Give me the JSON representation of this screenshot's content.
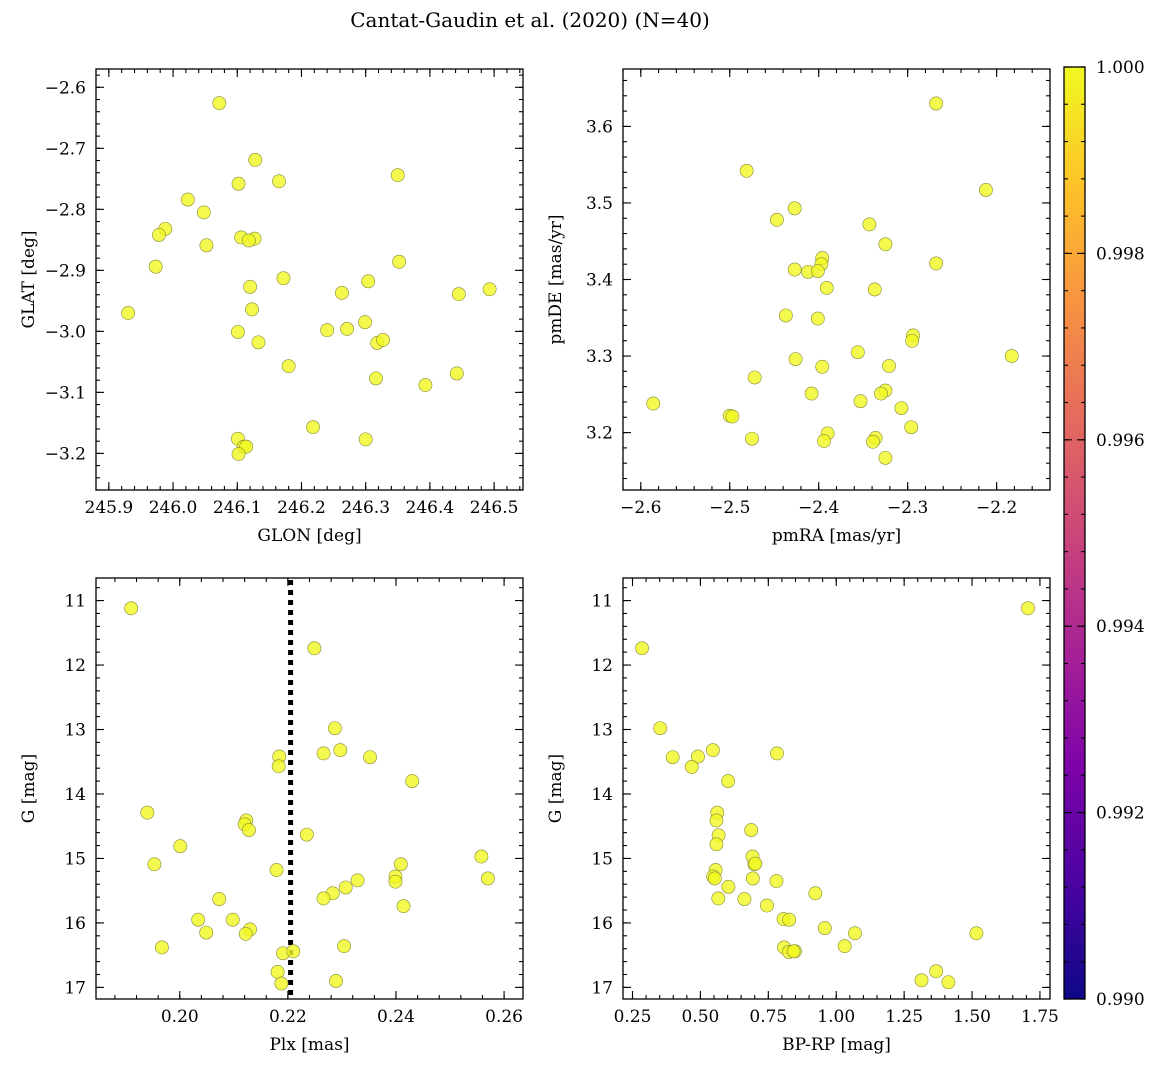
{
  "title": "Cantat-Gaudin et al. (2020) (N=40)",
  "colorbar": {
    "min": 0.99,
    "max": 1.0,
    "ticks": [
      "0.990",
      "0.992",
      "0.994",
      "0.996",
      "0.998",
      "1.000"
    ],
    "tick_values": [
      0.99,
      0.992,
      0.994,
      0.996,
      0.998,
      1.0
    ],
    "colormap": "plasma",
    "point_color": "#f0f921"
  },
  "chart_data": [
    {
      "type": "scatter",
      "xlabel": "GLON [deg]",
      "ylabel": "GLAT [deg]",
      "xlim": [
        245.88,
        246.545
      ],
      "ylim": [
        -3.26,
        -2.57
      ],
      "xticks": [
        245.9,
        246.0,
        246.1,
        246.2,
        246.3,
        246.4,
        246.5
      ],
      "xtick_labels": [
        "245.9",
        "246.0",
        "246.1",
        "246.2",
        "246.3",
        "246.4",
        "246.5"
      ],
      "yticks": [
        -2.6,
        -2.7,
        -2.8,
        -2.9,
        -3.0,
        -3.1,
        -3.2
      ],
      "ytick_labels": [
        "−2.6",
        "−2.7",
        "−2.8",
        "−2.9",
        "−3.0",
        "−3.1",
        "−3.2"
      ],
      "points": [
        [
          246.072,
          -2.626
        ],
        [
          246.128,
          -2.719
        ],
        [
          246.102,
          -2.758
        ],
        [
          246.165,
          -2.754
        ],
        [
          246.35,
          -2.744
        ],
        [
          246.023,
          -2.784
        ],
        [
          246.048,
          -2.805
        ],
        [
          245.988,
          -2.832
        ],
        [
          245.978,
          -2.842
        ],
        [
          246.106,
          -2.846
        ],
        [
          246.127,
          -2.848
        ],
        [
          246.118,
          -2.851
        ],
        [
          246.052,
          -2.859
        ],
        [
          246.352,
          -2.886
        ],
        [
          245.973,
          -2.894
        ],
        [
          246.172,
          -2.913
        ],
        [
          246.304,
          -2.918
        ],
        [
          246.493,
          -2.931
        ],
        [
          246.445,
          -2.939
        ],
        [
          246.12,
          -2.927
        ],
        [
          246.263,
          -2.937
        ],
        [
          246.123,
          -2.964
        ],
        [
          245.93,
          -2.97
        ],
        [
          246.299,
          -2.985
        ],
        [
          246.24,
          -2.998
        ],
        [
          246.101,
          -3.001
        ],
        [
          246.271,
          -2.996
        ],
        [
          246.133,
          -3.018
        ],
        [
          246.318,
          -3.019
        ],
        [
          246.327,
          -3.014
        ],
        [
          246.18,
          -3.057
        ],
        [
          246.316,
          -3.077
        ],
        [
          246.393,
          -3.088
        ],
        [
          246.442,
          -3.069
        ],
        [
          246.218,
          -3.157
        ],
        [
          246.101,
          -3.176
        ],
        [
          246.3,
          -3.177
        ],
        [
          246.11,
          -3.189
        ],
        [
          246.114,
          -3.189
        ],
        [
          246.102,
          -3.201
        ]
      ]
    },
    {
      "type": "scatter",
      "xlabel": "pmRA [mas/yr]",
      "ylabel": "pmDE [mas/yr]",
      "xlim": [
        -2.62,
        -2.14
      ],
      "ylim": [
        3.125,
        3.675
      ],
      "xticks": [
        -2.6,
        -2.5,
        -2.4,
        -2.3,
        -2.2
      ],
      "xtick_labels": [
        "−2.6",
        "−2.5",
        "−2.4",
        "−2.3",
        "−2.2"
      ],
      "yticks": [
        3.2,
        3.3,
        3.4,
        3.5,
        3.6
      ],
      "ytick_labels": [
        "3.2",
        "3.3",
        "3.4",
        "3.5",
        "3.6"
      ],
      "points": [
        [
          -2.268,
          3.63
        ],
        [
          -2.481,
          3.542
        ],
        [
          -2.212,
          3.517
        ],
        [
          -2.427,
          3.493
        ],
        [
          -2.447,
          3.478
        ],
        [
          -2.343,
          3.472
        ],
        [
          -2.325,
          3.446
        ],
        [
          -2.396,
          3.428
        ],
        [
          -2.397,
          3.42
        ],
        [
          -2.268,
          3.421
        ],
        [
          -2.427,
          3.413
        ],
        [
          -2.412,
          3.41
        ],
        [
          -2.401,
          3.411
        ],
        [
          -2.391,
          3.389
        ],
        [
          -2.337,
          3.387
        ],
        [
          -2.437,
          3.353
        ],
        [
          -2.401,
          3.349
        ],
        [
          -2.294,
          3.327
        ],
        [
          -2.295,
          3.32
        ],
        [
          -2.356,
          3.305
        ],
        [
          -2.183,
          3.3
        ],
        [
          -2.426,
          3.296
        ],
        [
          -2.396,
          3.286
        ],
        [
          -2.321,
          3.287
        ],
        [
          -2.472,
          3.272
        ],
        [
          -2.325,
          3.255
        ],
        [
          -2.33,
          3.251
        ],
        [
          -2.408,
          3.251
        ],
        [
          -2.353,
          3.241
        ],
        [
          -2.586,
          3.238
        ],
        [
          -2.307,
          3.232
        ],
        [
          -2.5,
          3.222
        ],
        [
          -2.497,
          3.221
        ],
        [
          -2.296,
          3.207
        ],
        [
          -2.39,
          3.199
        ],
        [
          -2.336,
          3.193
        ],
        [
          -2.475,
          3.192
        ],
        [
          -2.394,
          3.189
        ],
        [
          -2.339,
          3.188
        ],
        [
          -2.325,
          3.167
        ]
      ]
    },
    {
      "type": "scatter",
      "xlabel": "Plx [mas]",
      "ylabel": "G [mag]",
      "xlim": [
        0.1845,
        0.2635
      ],
      "ylim": [
        17.18,
        10.65
      ],
      "y_inverted": true,
      "xticks": [
        0.2,
        0.22,
        0.24,
        0.26
      ],
      "xtick_labels": [
        "0.20",
        "0.22",
        "0.24",
        "0.26"
      ],
      "yticks": [
        11,
        12,
        13,
        14,
        15,
        16,
        17
      ],
      "ytick_labels": [
        "11",
        "12",
        "13",
        "14",
        "15",
        "16",
        "17"
      ],
      "vline": 0.2205,
      "points": [
        [
          0.191,
          11.12
        ],
        [
          0.2249,
          11.74
        ],
        [
          0.2287,
          12.98
        ],
        [
          0.2266,
          13.37
        ],
        [
          0.2297,
          13.32
        ],
        [
          0.2184,
          13.42
        ],
        [
          0.2183,
          13.57
        ],
        [
          0.2352,
          13.43
        ],
        [
          0.243,
          13.8
        ],
        [
          0.194,
          14.29
        ],
        [
          0.2123,
          14.41
        ],
        [
          0.212,
          14.47
        ],
        [
          0.2128,
          14.56
        ],
        [
          0.2235,
          14.63
        ],
        [
          0.2001,
          14.81
        ],
        [
          0.1953,
          15.09
        ],
        [
          0.2409,
          15.09
        ],
        [
          0.2558,
          14.97
        ],
        [
          0.257,
          15.31
        ],
        [
          0.2179,
          15.18
        ],
        [
          0.2399,
          15.28
        ],
        [
          0.2399,
          15.36
        ],
        [
          0.2307,
          15.45
        ],
        [
          0.2329,
          15.34
        ],
        [
          0.2283,
          15.54
        ],
        [
          0.2266,
          15.62
        ],
        [
          0.2073,
          15.63
        ],
        [
          0.2414,
          15.74
        ],
        [
          0.2034,
          15.95
        ],
        [
          0.2098,
          15.95
        ],
        [
          0.213,
          16.1
        ],
        [
          0.2122,
          16.17
        ],
        [
          0.2049,
          16.15
        ],
        [
          0.2304,
          16.36
        ],
        [
          0.1967,
          16.38
        ],
        [
          0.2191,
          16.47
        ],
        [
          0.221,
          16.44
        ],
        [
          0.2181,
          16.76
        ],
        [
          0.2188,
          16.94
        ],
        [
          0.2289,
          16.9
        ]
      ]
    },
    {
      "type": "scatter",
      "xlabel": "BP-RP [mag]",
      "ylabel": "G [mag]",
      "xlim": [
        0.215,
        1.787
      ],
      "ylim": [
        17.18,
        10.65
      ],
      "y_inverted": true,
      "xticks": [
        0.25,
        0.5,
        0.75,
        1.0,
        1.25,
        1.5,
        1.75
      ],
      "xtick_labels": [
        "0.25",
        "0.50",
        "0.75",
        "1.00",
        "1.25",
        "1.50",
        "1.75"
      ],
      "yticks": [
        11,
        12,
        13,
        14,
        15,
        16,
        17
      ],
      "ytick_labels": [
        "11",
        "12",
        "13",
        "14",
        "15",
        "16",
        "17"
      ],
      "points": [
        [
          1.706,
          11.12
        ],
        [
          0.285,
          11.74
        ],
        [
          0.352,
          12.98
        ],
        [
          0.398,
          13.43
        ],
        [
          0.546,
          13.32
        ],
        [
          0.491,
          13.42
        ],
        [
          0.782,
          13.37
        ],
        [
          0.468,
          13.58
        ],
        [
          0.602,
          13.8
        ],
        [
          0.562,
          14.29
        ],
        [
          0.559,
          14.41
        ],
        [
          0.567,
          14.64
        ],
        [
          0.687,
          14.56
        ],
        [
          0.559,
          14.78
        ],
        [
          0.692,
          14.97
        ],
        [
          0.699,
          15.09
        ],
        [
          0.702,
          15.08
        ],
        [
          0.556,
          15.18
        ],
        [
          0.547,
          15.28
        ],
        [
          0.553,
          15.31
        ],
        [
          0.693,
          15.31
        ],
        [
          0.78,
          15.35
        ],
        [
          0.603,
          15.44
        ],
        [
          0.923,
          15.54
        ],
        [
          0.566,
          15.62
        ],
        [
          0.662,
          15.63
        ],
        [
          0.745,
          15.73
        ],
        [
          0.806,
          15.94
        ],
        [
          0.827,
          15.95
        ],
        [
          0.958,
          16.08
        ],
        [
          1.069,
          16.16
        ],
        [
          1.516,
          16.16
        ],
        [
          1.031,
          16.36
        ],
        [
          0.808,
          16.38
        ],
        [
          0.826,
          16.45
        ],
        [
          0.848,
          16.44
        ],
        [
          1.368,
          16.75
        ],
        [
          1.314,
          16.89
        ],
        [
          1.413,
          16.92
        ],
        [
          0.843,
          16.44
        ]
      ]
    }
  ]
}
